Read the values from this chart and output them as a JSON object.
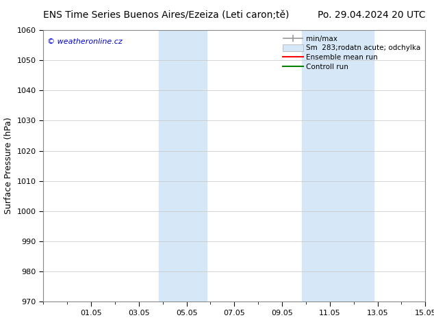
{
  "title_left": "ENS Time Series Buenos Aires/Ezeiza (Leti caron;tě)",
  "title_right": "Po. 29.04.2024 20 UTC",
  "ylabel": "Surface Pressure (hPa)",
  "ylim": [
    970,
    1060
  ],
  "yticks": [
    970,
    980,
    990,
    1000,
    1010,
    1020,
    1030,
    1040,
    1050,
    1060
  ],
  "xtick_labels": [
    "01.05",
    "03.05",
    "05.05",
    "07.05",
    "09.05",
    "11.05",
    "13.05",
    "15.05"
  ],
  "xtick_positions": [
    2,
    4,
    6,
    8,
    10,
    12,
    14,
    16
  ],
  "xlim": [
    0,
    16
  ],
  "shade_bands": [
    {
      "xstart": 4.83,
      "xend": 6.83
    },
    {
      "xstart": 10.83,
      "xend": 13.83
    }
  ],
  "shade_color": "#d6e8f7",
  "watermark": "© weatheronline.cz",
  "watermark_color": "#0000cc",
  "legend_minmax_label": "min/max",
  "legend_std_label": "Sm  283;rodatn acute; odchylka",
  "legend_ens_label": "Ensemble mean run",
  "legend_ctrl_label": "Controll run",
  "minmax_color": "#999999",
  "ens_color": "#ff0000",
  "ctrl_color": "#008000",
  "bg_color": "#ffffff",
  "grid_color": "#cccccc",
  "title_fontsize": 10,
  "tick_fontsize": 8,
  "ylabel_fontsize": 9,
  "legend_fontsize": 7.5
}
